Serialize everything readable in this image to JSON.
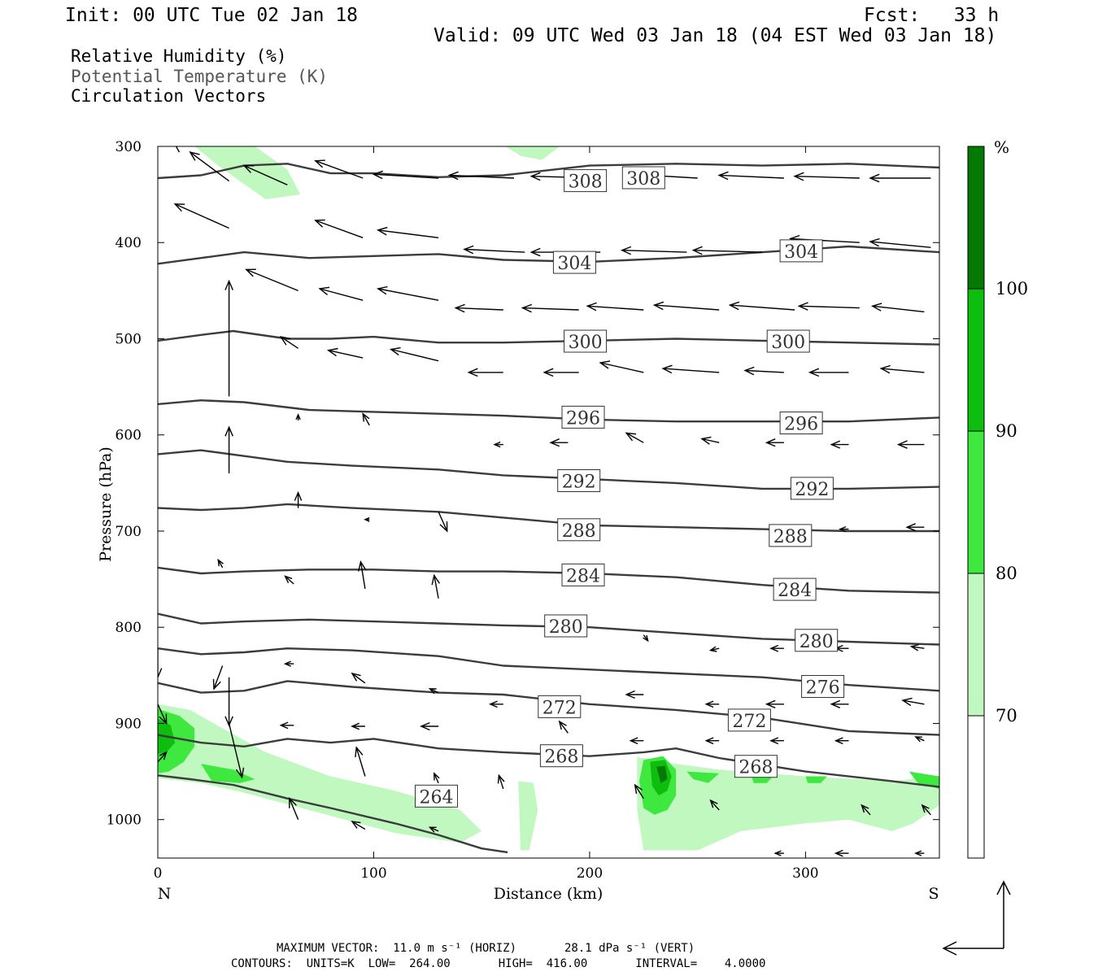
{
  "header": {
    "init": "Init: 00 UTC Tue 02 Jan 18",
    "fcst": "Fcst:   33 h",
    "valid": "Valid: 09 UTC Wed 03 Jan 18 (04 EST Wed 03 Jan 18)"
  },
  "legend": {
    "rh": "Relative Humidity (%)",
    "theta": "Potential Temperature (K)",
    "vectors": "Circulation Vectors"
  },
  "colors": {
    "rh_70": "#c0f8c0",
    "rh_80": "#3ee83e",
    "rh_90": "#0ebe0e",
    "rh_100": "#047a04",
    "contour": "#3c3c3c",
    "vector": "#000000",
    "theta_text": "#555555"
  },
  "footer": {
    "max_vector": "MAXIMUM VECTOR:  11.0 m s⁻¹ (HORIZ)       28.1 dPa s⁻¹ (VERT)",
    "contours": "CONTOURS:  UNITS=K  LOW=  264.00       HIGH=  416.00       INTERVAL=    4.0000"
  },
  "chart_data": {
    "type": "contour",
    "xlabel": "Distance (km)",
    "ylabel": "Pressure (hPa)",
    "xlim": [
      0,
      362
    ],
    "ylim": [
      1040,
      300
    ],
    "x_ticks": [
      0,
      100,
      200,
      300
    ],
    "y_ticks": [
      300,
      400,
      500,
      600,
      700,
      800,
      900,
      1000
    ],
    "x_end_labels": {
      "left": "N",
      "right": "S"
    },
    "colorbar": {
      "unit": "%",
      "levels": [
        70,
        80,
        90,
        100
      ]
    },
    "contour_units": "K",
    "contour_low": 264.0,
    "contour_high": 416.0,
    "contour_interval": 4.0,
    "isentropes": [
      {
        "theta": 308,
        "points": [
          [
            0,
            333
          ],
          [
            20,
            330
          ],
          [
            40,
            320
          ],
          [
            60,
            318
          ],
          [
            80,
            328
          ],
          [
            100,
            328
          ],
          [
            130,
            332
          ],
          [
            160,
            330
          ],
          [
            200,
            320
          ],
          [
            240,
            318
          ],
          [
            280,
            320
          ],
          [
            320,
            318
          ],
          [
            362,
            322
          ]
        ],
        "labels": [
          [
            198,
            336
          ],
          [
            225,
            333
          ]
        ]
      },
      {
        "theta": 304,
        "points": [
          [
            0,
            422
          ],
          [
            20,
            416
          ],
          [
            40,
            410
          ],
          [
            70,
            416
          ],
          [
            100,
            414
          ],
          [
            130,
            412
          ],
          [
            160,
            418
          ],
          [
            200,
            420
          ],
          [
            240,
            416
          ],
          [
            280,
            410
          ],
          [
            320,
            404
          ],
          [
            362,
            410
          ]
        ],
        "labels": [
          [
            193,
            421
          ],
          [
            298,
            409
          ]
        ]
      },
      {
        "theta": 300,
        "points": [
          [
            0,
            502
          ],
          [
            20,
            496
          ],
          [
            35,
            492
          ],
          [
            60,
            500
          ],
          [
            80,
            500
          ],
          [
            100,
            498
          ],
          [
            130,
            504
          ],
          [
            160,
            504
          ],
          [
            200,
            502
          ],
          [
            240,
            500
          ],
          [
            280,
            502
          ],
          [
            320,
            504
          ],
          [
            362,
            506
          ]
        ],
        "labels": [
          [
            198,
            503
          ],
          [
            292,
            503
          ]
        ]
      },
      {
        "theta": 296,
        "points": [
          [
            0,
            568
          ],
          [
            20,
            564
          ],
          [
            40,
            566
          ],
          [
            70,
            574
          ],
          [
            100,
            576
          ],
          [
            130,
            578
          ],
          [
            160,
            580
          ],
          [
            200,
            584
          ],
          [
            240,
            586
          ],
          [
            280,
            586
          ],
          [
            320,
            586
          ],
          [
            362,
            582
          ]
        ],
        "labels": [
          [
            197,
            582
          ],
          [
            298,
            588
          ]
        ]
      },
      {
        "theta": 292,
        "points": [
          [
            0,
            620
          ],
          [
            20,
            616
          ],
          [
            40,
            622
          ],
          [
            60,
            628
          ],
          [
            90,
            632
          ],
          [
            130,
            636
          ],
          [
            160,
            642
          ],
          [
            200,
            646
          ],
          [
            240,
            650
          ],
          [
            280,
            656
          ],
          [
            320,
            656
          ],
          [
            362,
            654
          ]
        ],
        "labels": [
          [
            195,
            648
          ],
          [
            303,
            656
          ]
        ]
      },
      {
        "theta": 288,
        "points": [
          [
            0,
            676
          ],
          [
            20,
            678
          ],
          [
            40,
            676
          ],
          [
            60,
            672
          ],
          [
            90,
            676
          ],
          [
            130,
            680
          ],
          [
            160,
            686
          ],
          [
            200,
            694
          ],
          [
            240,
            696
          ],
          [
            280,
            698
          ],
          [
            320,
            700
          ],
          [
            362,
            700
          ]
        ],
        "labels": [
          [
            195,
            699
          ],
          [
            293,
            705
          ]
        ]
      },
      {
        "theta": 284,
        "points": [
          [
            0,
            738
          ],
          [
            20,
            744
          ],
          [
            40,
            742
          ],
          [
            70,
            740
          ],
          [
            100,
            740
          ],
          [
            130,
            742
          ],
          [
            160,
            742
          ],
          [
            200,
            744
          ],
          [
            240,
            748
          ],
          [
            280,
            756
          ],
          [
            320,
            762
          ],
          [
            362,
            764
          ]
        ],
        "labels": [
          [
            197,
            746
          ],
          [
            295,
            761
          ]
        ]
      },
      {
        "theta": 280,
        "points": [
          [
            0,
            786
          ],
          [
            20,
            796
          ],
          [
            40,
            794
          ],
          [
            70,
            792
          ],
          [
            100,
            794
          ],
          [
            130,
            796
          ],
          [
            160,
            798
          ],
          [
            200,
            800
          ],
          [
            240,
            806
          ],
          [
            280,
            812
          ],
          [
            320,
            815
          ],
          [
            362,
            818
          ]
        ],
        "labels": [
          [
            189,
            799
          ],
          [
            305,
            814
          ]
        ]
      },
      {
        "theta": 276,
        "points": [
          [
            0,
            822
          ],
          [
            20,
            828
          ],
          [
            40,
            826
          ],
          [
            60,
            822
          ],
          [
            90,
            824
          ],
          [
            130,
            830
          ],
          [
            160,
            840
          ],
          [
            200,
            844
          ],
          [
            240,
            848
          ],
          [
            280,
            852
          ],
          [
            320,
            860
          ],
          [
            362,
            866
          ]
        ],
        "labels": [
          [
            308,
            862
          ]
        ]
      },
      {
        "theta": 272,
        "points": [
          [
            0,
            858
          ],
          [
            20,
            868
          ],
          [
            40,
            866
          ],
          [
            60,
            856
          ],
          [
            90,
            862
          ],
          [
            130,
            868
          ],
          [
            160,
            870
          ],
          [
            200,
            880
          ],
          [
            240,
            886
          ],
          [
            280,
            894
          ],
          [
            320,
            908
          ],
          [
            362,
            912
          ]
        ],
        "labels": [
          [
            186,
            883
          ],
          [
            274,
            897
          ]
        ]
      },
      {
        "theta": 268,
        "points": [
          [
            0,
            912
          ],
          [
            20,
            920
          ],
          [
            40,
            924
          ],
          [
            60,
            916
          ],
          [
            80,
            920
          ],
          [
            100,
            916
          ],
          [
            130,
            926
          ],
          [
            160,
            930
          ],
          [
            200,
            934
          ],
          [
            225,
            930
          ],
          [
            240,
            926
          ],
          [
            260,
            936
          ],
          [
            300,
            950
          ],
          [
            340,
            960
          ],
          [
            362,
            966
          ]
        ],
        "labels": [
          [
            187,
            934
          ],
          [
            277,
            945
          ]
        ]
      },
      {
        "theta": 264,
        "points": [
          [
            0,
            954
          ],
          [
            15,
            958
          ],
          [
            35,
            964
          ],
          [
            60,
            978
          ],
          [
            80,
            988
          ],
          [
            110,
            1004
          ],
          [
            130,
            1016
          ],
          [
            150,
            1030
          ],
          [
            162,
            1034
          ]
        ],
        "labels": [
          [
            129,
            976
          ]
        ]
      }
    ],
    "vectors": [
      [
        10,
        306,
        -5,
        -20
      ],
      [
        33,
        336,
        -18,
        -30
      ],
      [
        60,
        340,
        -20,
        -20
      ],
      [
        95,
        333,
        -22,
        -18
      ],
      [
        130,
        333,
        -30,
        -4
      ],
      [
        165,
        333,
        -30,
        -3
      ],
      [
        205,
        333,
        -32,
        -2
      ],
      [
        250,
        333,
        -30,
        -4
      ],
      [
        290,
        333,
        -30,
        -3
      ],
      [
        325,
        333,
        -30,
        -2
      ],
      [
        358,
        333,
        -28,
        0
      ],
      [
        33,
        385,
        -25,
        -25
      ],
      [
        95,
        395,
        -22,
        -18
      ],
      [
        130,
        395,
        -28,
        -8
      ],
      [
        170,
        410,
        -28,
        -3
      ],
      [
        205,
        410,
        -32,
        0
      ],
      [
        245,
        410,
        -30,
        -2
      ],
      [
        280,
        410,
        -32,
        -2
      ],
      [
        325,
        400,
        -32,
        -4
      ],
      [
        358,
        405,
        -28,
        -6
      ],
      [
        65,
        450,
        -24,
        -22
      ],
      [
        95,
        460,
        -20,
        -12
      ],
      [
        130,
        460,
        -28,
        -12
      ],
      [
        160,
        470,
        -22,
        -2
      ],
      [
        195,
        470,
        -26,
        -2
      ],
      [
        225,
        470,
        -26,
        -4
      ],
      [
        260,
        470,
        -30,
        -5
      ],
      [
        295,
        470,
        -30,
        -5
      ],
      [
        325,
        468,
        -28,
        -2
      ],
      [
        355,
        472,
        -24,
        -6
      ],
      [
        65,
        510,
        -8,
        -12
      ],
      [
        95,
        520,
        -16,
        -8
      ],
      [
        130,
        523,
        -22,
        -12
      ],
      [
        160,
        535,
        -16,
        0
      ],
      [
        195,
        535,
        -16,
        0
      ],
      [
        225,
        535,
        -20,
        -10
      ],
      [
        260,
        535,
        -26,
        -4
      ],
      [
        290,
        535,
        -18,
        -2
      ],
      [
        320,
        535,
        -18,
        0
      ],
      [
        355,
        535,
        -20,
        -4
      ],
      [
        33,
        560,
        0,
        -120
      ],
      [
        33,
        640,
        0,
        -48
      ],
      [
        65,
        585,
        0,
        -6
      ],
      [
        98,
        590,
        -3,
        -12
      ],
      [
        160,
        610,
        -4,
        0
      ],
      [
        190,
        608,
        -8,
        0
      ],
      [
        225,
        608,
        -8,
        -10
      ],
      [
        260,
        608,
        -8,
        -4
      ],
      [
        290,
        608,
        -8,
        0
      ],
      [
        320,
        610,
        -8,
        0
      ],
      [
        355,
        610,
        -12,
        0
      ],
      [
        65,
        676,
        0,
        -16
      ],
      [
        98,
        688,
        -2,
        0
      ],
      [
        130,
        680,
        4,
        20
      ],
      [
        195,
        700,
        2,
        4
      ],
      [
        240,
        700,
        0,
        0
      ],
      [
        270,
        700,
        0,
        0
      ],
      [
        320,
        698,
        -4,
        0
      ],
      [
        355,
        696,
        -8,
        0
      ],
      [
        30,
        738,
        -2,
        -8
      ],
      [
        63,
        755,
        -4,
        -8
      ],
      [
        96,
        760,
        -2,
        -28
      ],
      [
        130,
        770,
        -2,
        -24
      ],
      [
        195,
        800,
        -2,
        0
      ],
      [
        225,
        808,
        2,
        6
      ],
      [
        260,
        822,
        -4,
        2
      ],
      [
        290,
        822,
        -6,
        0
      ],
      [
        320,
        822,
        -6,
        0
      ],
      [
        355,
        822,
        -6,
        -2
      ],
      [
        30,
        840,
        -4,
        24
      ],
      [
        63,
        838,
        -4,
        0
      ],
      [
        96,
        858,
        -6,
        -10
      ],
      [
        130,
        868,
        -4,
        -4
      ],
      [
        160,
        880,
        -6,
        0
      ],
      [
        190,
        880,
        -8,
        0
      ],
      [
        225,
        870,
        -8,
        0
      ],
      [
        260,
        880,
        -6,
        0
      ],
      [
        290,
        880,
        -8,
        0
      ],
      [
        320,
        880,
        -8,
        0
      ],
      [
        355,
        880,
        -10,
        -4
      ],
      [
        0,
        822,
        0,
        30
      ],
      [
        33,
        852,
        0,
        50
      ],
      [
        33,
        900,
        6,
        56
      ],
      [
        0,
        880,
        4,
        20
      ],
      [
        0,
        940,
        4,
        -10
      ],
      [
        63,
        902,
        -6,
        0
      ],
      [
        96,
        903,
        -6,
        0
      ],
      [
        130,
        903,
        -8,
        0
      ],
      [
        190,
        910,
        -4,
        -12
      ],
      [
        225,
        918,
        -6,
        0
      ],
      [
        260,
        918,
        -6,
        0
      ],
      [
        290,
        918,
        -6,
        0
      ],
      [
        320,
        918,
        -6,
        0
      ],
      [
        355,
        918,
        -4,
        -4
      ],
      [
        96,
        955,
        -4,
        -30
      ],
      [
        130,
        962,
        -2,
        -10
      ],
      [
        160,
        968,
        -2,
        -14
      ],
      [
        225,
        978,
        -4,
        -14
      ],
      [
        260,
        990,
        -4,
        -10
      ],
      [
        330,
        995,
        -4,
        -10
      ],
      [
        358,
        995,
        -4,
        -10
      ],
      [
        65,
        1000,
        -4,
        -22
      ],
      [
        96,
        1010,
        -6,
        -8
      ],
      [
        130,
        1012,
        -4,
        -4
      ],
      [
        290,
        1035,
        -4,
        0
      ],
      [
        320,
        1035,
        -6,
        0
      ],
      [
        355,
        1035,
        -4,
        0
      ]
    ]
  }
}
